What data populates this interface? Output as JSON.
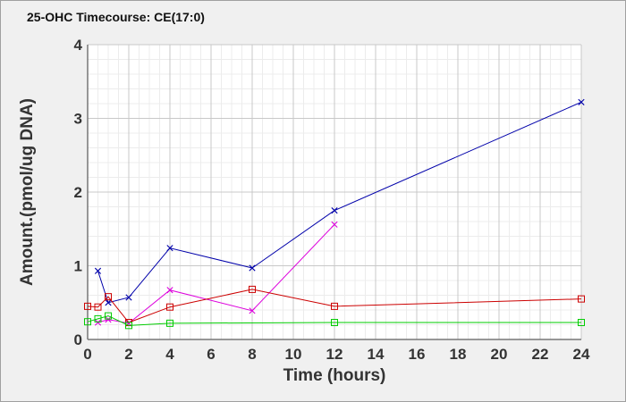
{
  "chart_data": {
    "type": "line",
    "title": "25-OHC Timecourse: CE(17:0)",
    "xlabel": "Time (hours)",
    "ylabel": "Amount.(pmol/ug DNA)",
    "xlim": [
      0,
      24
    ],
    "ylim": [
      0,
      4
    ],
    "x_ticks": [
      0,
      2,
      4,
      6,
      8,
      10,
      12,
      14,
      16,
      18,
      20,
      22,
      24
    ],
    "y_ticks": [
      0,
      1,
      2,
      3,
      4
    ],
    "grid": true,
    "legend": "none",
    "series": [
      {
        "color": "#0000aa",
        "marker": "x",
        "points": [
          [
            0.5,
            0.93
          ],
          [
            1,
            0.5
          ],
          [
            2,
            0.57
          ],
          [
            4,
            1.24
          ],
          [
            8,
            0.97
          ],
          [
            12,
            1.75
          ],
          [
            24,
            3.22
          ]
        ]
      },
      {
        "color": "#dd00dd",
        "marker": "x",
        "points": [
          [
            0.5,
            0.23
          ],
          [
            1,
            0.27
          ],
          [
            2,
            0.22
          ],
          [
            4,
            0.67
          ],
          [
            8,
            0.39
          ],
          [
            12,
            1.56
          ]
        ]
      },
      {
        "color": "#cc0000",
        "marker": "square",
        "points": [
          [
            0,
            0.45
          ],
          [
            0.5,
            0.44
          ],
          [
            1,
            0.58
          ],
          [
            2,
            0.23
          ],
          [
            4,
            0.44
          ],
          [
            8,
            0.68
          ],
          [
            12,
            0.45
          ],
          [
            24,
            0.55
          ]
        ]
      },
      {
        "color": "#00cc00",
        "marker": "square",
        "points": [
          [
            0,
            0.24
          ],
          [
            0.5,
            0.28
          ],
          [
            1,
            0.32
          ],
          [
            2,
            0.19
          ],
          [
            4,
            0.22
          ],
          [
            12,
            0.23
          ],
          [
            24,
            0.23
          ]
        ]
      }
    ]
  }
}
